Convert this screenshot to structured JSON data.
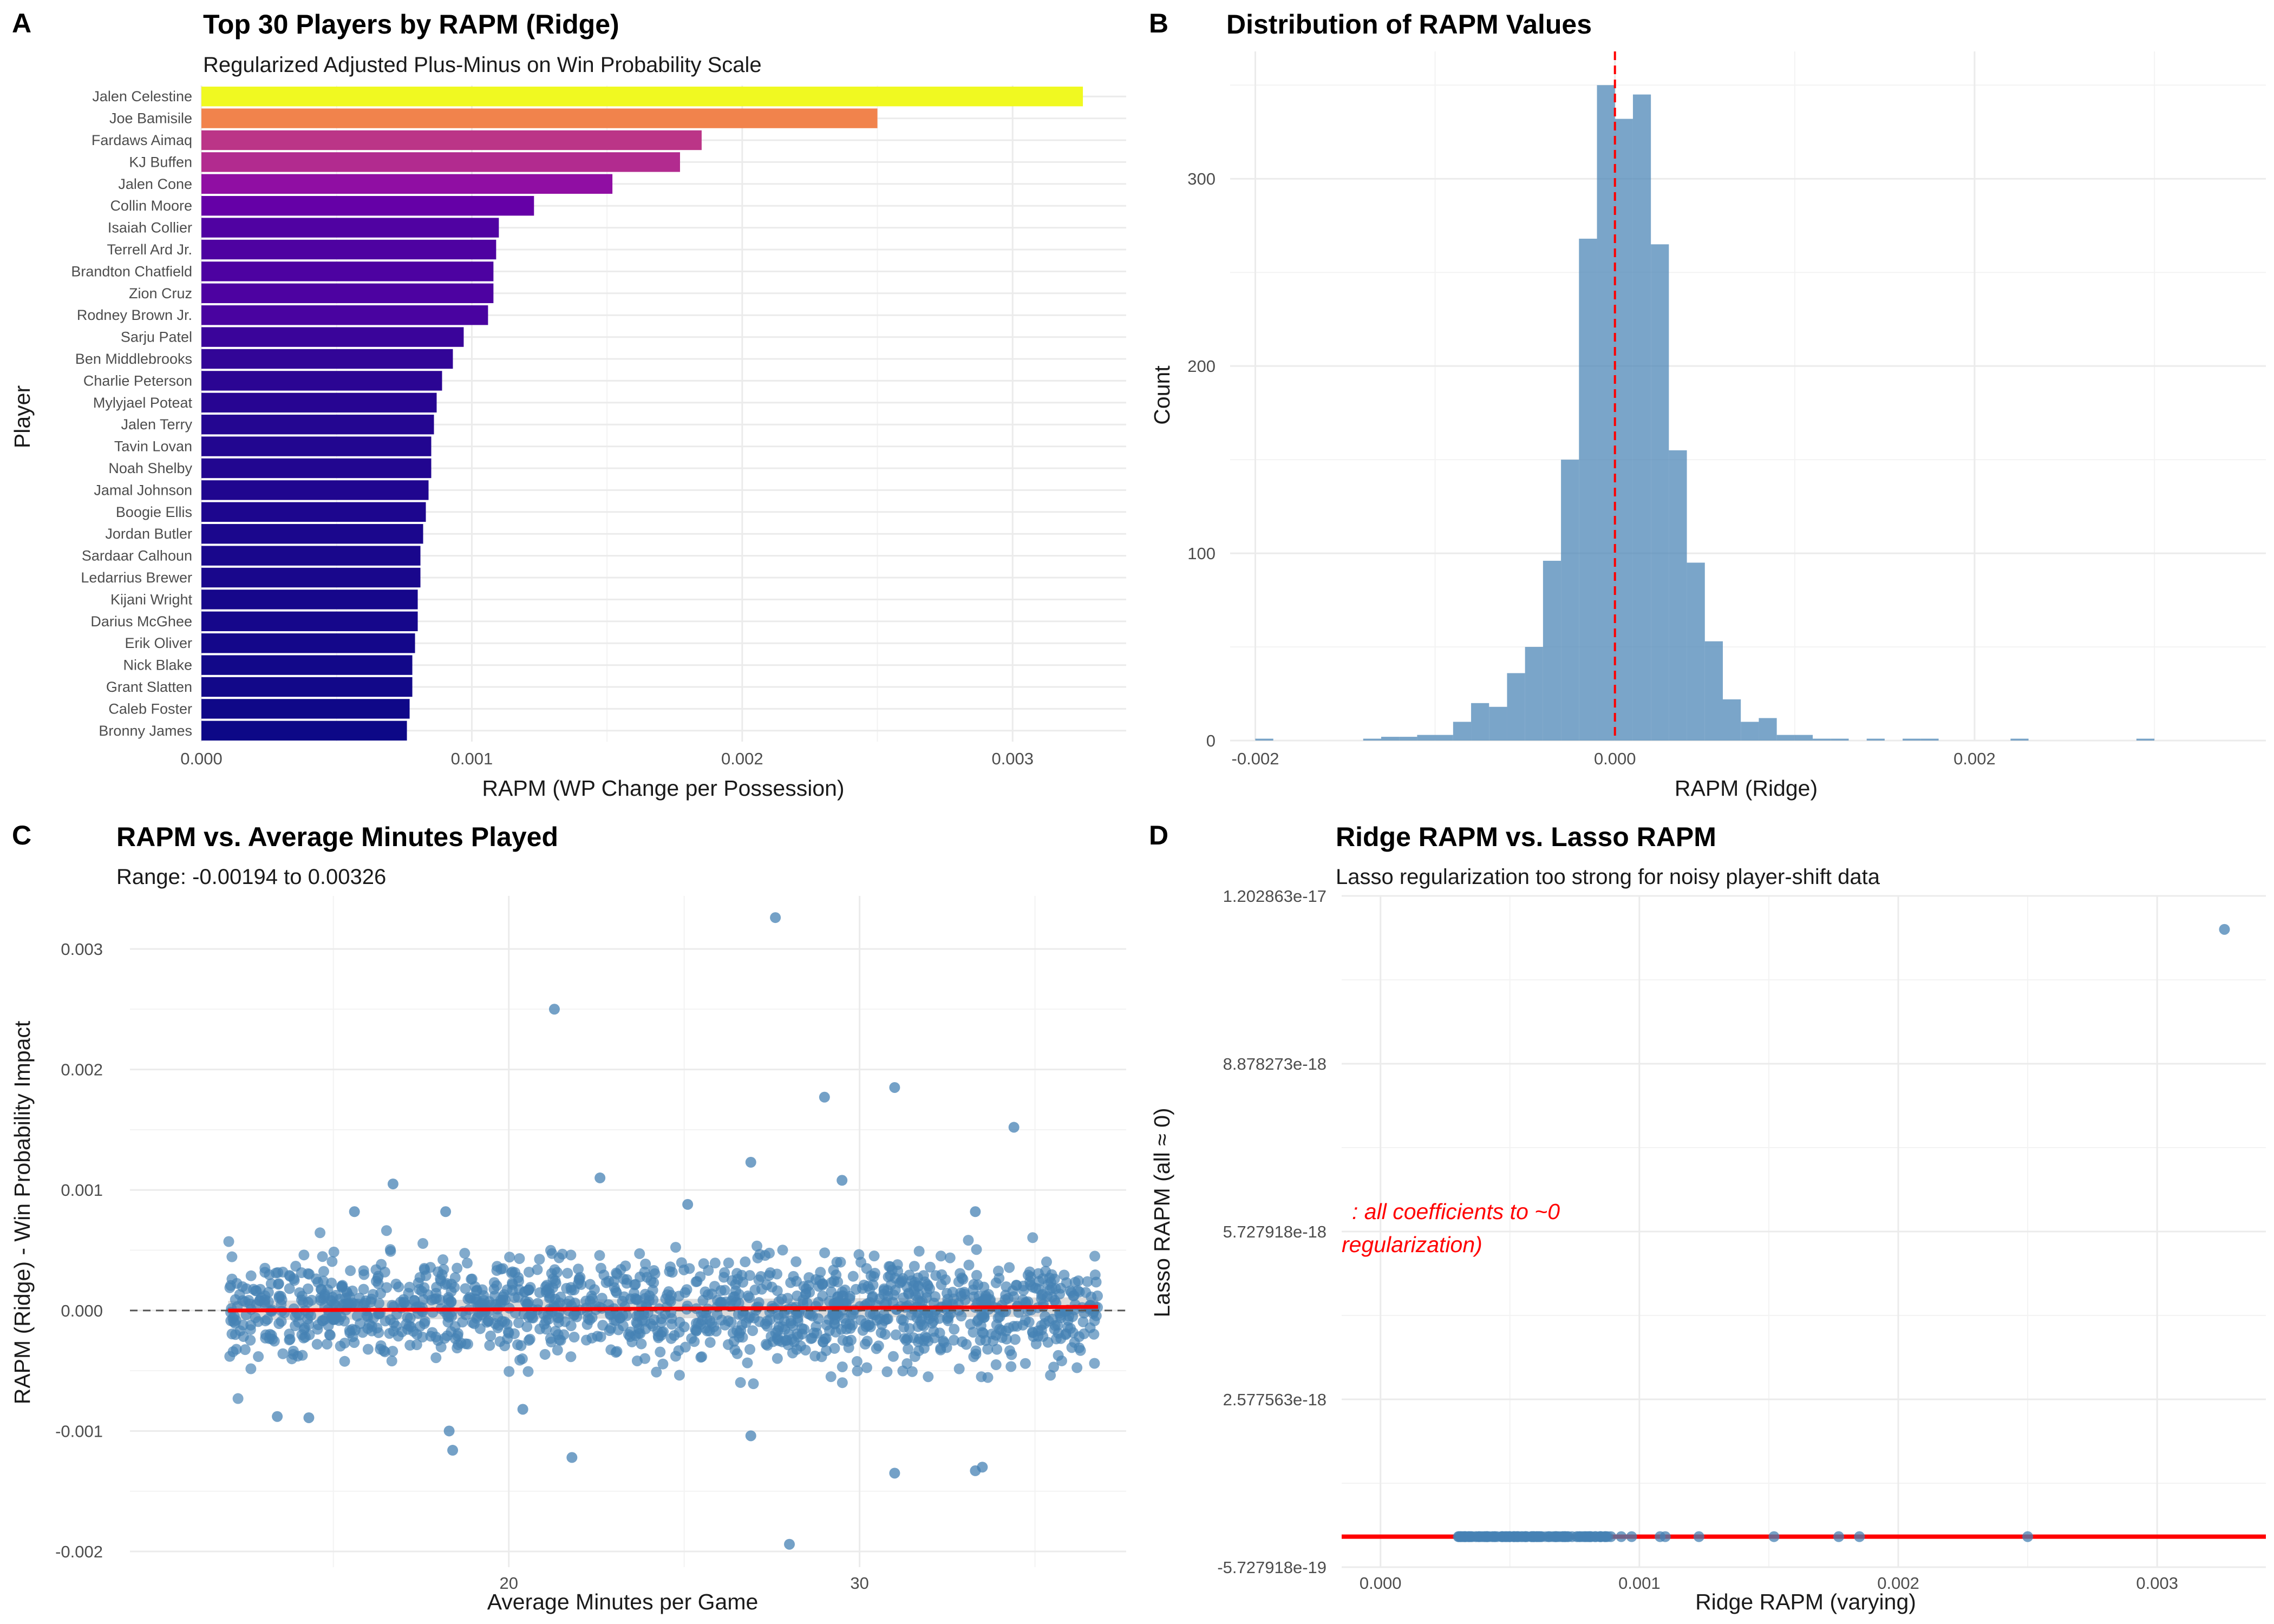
{
  "colors": {
    "steelblue": "#4682b4",
    "red": "#ff0000",
    "dark_red": "#cc0000",
    "plasma": [
      "#0d0887",
      "#2a0593",
      "#41049d",
      "#5601a4",
      "#6a00a8",
      "#7e03a8",
      "#8f0da4",
      "#a11b9b",
      "#b12a90",
      "#bf3984",
      "#cc4778",
      "#d6556d",
      "#e16462",
      "#ea7457",
      "#f2844b",
      "#f89540",
      "#fca636",
      "#feb82c",
      "#fcce25",
      "#f5e626",
      "#f0f921"
    ]
  },
  "chart_data": [
    {
      "panel": "A",
      "type": "bar",
      "orientation": "horizontal",
      "title": "Top 30 Players by RAPM (Ridge)",
      "subtitle": "Regularized Adjusted Plus-Minus on Win Probability Scale",
      "xlabel": "RAPM (WP Change per Possession)",
      "ylabel": "Player",
      "xlim": [
        0,
        0.00342
      ],
      "x_ticks": [
        "0.000",
        "0.001",
        "0.002",
        "0.003"
      ],
      "fill": "plasma gradient by value",
      "categories": [
        "Jalen Celestine",
        "Joe Bamisile",
        "Fardaws Aimaq",
        "KJ Buffen",
        "Jalen Cone",
        "Collin Moore",
        "Isaiah Collier",
        "Terrell Ard Jr.",
        "Brandton Chatfield",
        "Zion Cruz",
        "Rodney Brown Jr.",
        "Sarju Patel",
        "Ben Middlebrooks",
        "Charlie Peterson",
        "Mylyjael Poteat",
        "Jalen Terry",
        "Tavin Lovan",
        "Noah Shelby",
        "Jamal Johnson",
        "Boogie Ellis",
        "Jordan Butler",
        "Sardaar Calhoun",
        "Ledarrius Brewer",
        "Kijani Wright",
        "Darius McGhee",
        "Erik Oliver",
        "Nick Blake",
        "Grant Slatten",
        "Caleb Foster",
        "Bronny James"
      ],
      "values": [
        0.00326,
        0.0025,
        0.00185,
        0.00177,
        0.00152,
        0.00123,
        0.0011,
        0.00109,
        0.00108,
        0.00108,
        0.00106,
        0.00097,
        0.00093,
        0.00089,
        0.00087,
        0.00086,
        0.00085,
        0.00085,
        0.00084,
        0.00083,
        0.00082,
        0.00081,
        0.00081,
        0.0008,
        0.0008,
        0.00079,
        0.00078,
        0.00078,
        0.00077,
        0.00076
      ]
    },
    {
      "panel": "B",
      "type": "histogram",
      "title": "Distribution of RAPM Values",
      "xlabel": "RAPM (Ridge)",
      "ylabel": "Count",
      "xlim": [
        -0.00214,
        0.00362
      ],
      "ylim": [
        0,
        368
      ],
      "x_ticks": [
        "-0.002",
        "0.000",
        "0.002"
      ],
      "y_ticks": [
        "0",
        "100",
        "200",
        "300"
      ],
      "bin_width": 0.0001,
      "bins_start": -0.002,
      "counts": [
        1,
        0,
        0,
        0,
        0,
        0,
        1,
        2,
        2,
        3,
        3,
        10,
        20,
        18,
        36,
        50,
        96,
        150,
        268,
        350,
        332,
        345,
        265,
        155,
        95,
        53,
        22,
        10,
        12,
        3,
        3,
        1,
        1,
        0,
        1,
        0,
        1,
        1,
        0,
        0,
        0,
        0,
        1,
        0,
        0,
        0,
        0,
        0,
        0,
        1
      ],
      "reference_line": {
        "x": 0,
        "style": "dashed",
        "color": "#ff0000"
      },
      "fill": "#4682b4"
    },
    {
      "panel": "C",
      "type": "scatter",
      "title": "RAPM vs. Average Minutes Played",
      "subtitle": "Range: -0.00194 to 0.00326",
      "xlabel": "Average Minutes per Game",
      "ylabel": "RAPM (Ridge) - Win Probability Impact",
      "xlim": [
        9.2,
        37.6
      ],
      "ylim": [
        -0.00213,
        0.00344
      ],
      "x_ticks": [
        "20",
        "30"
      ],
      "y_ticks": [
        "-0.002",
        "-0.001",
        "0.000",
        "0.001",
        "0.002",
        "0.003"
      ],
      "trend_line": {
        "x": [
          12,
          36.8
        ],
        "y": [
          0.0,
          3e-05
        ],
        "color": "#ff0000"
      },
      "zero_line": {
        "y": 0,
        "style": "dashed"
      },
      "dense_cloud": {
        "n": 1400,
        "x_range": [
          12,
          36.8
        ],
        "sd": 0.00021
      },
      "outliers": [
        {
          "x": 27.6,
          "y": 0.00326
        },
        {
          "x": 21.3,
          "y": 0.0025
        },
        {
          "x": 31.0,
          "y": 0.00185
        },
        {
          "x": 29.0,
          "y": 0.00177
        },
        {
          "x": 34.4,
          "y": 0.00152
        },
        {
          "x": 26.9,
          "y": 0.00123
        },
        {
          "x": 16.7,
          "y": 0.00105
        },
        {
          "x": 22.6,
          "y": 0.0011
        },
        {
          "x": 29.5,
          "y": 0.00108
        },
        {
          "x": 25.1,
          "y": 0.00088
        },
        {
          "x": 15.6,
          "y": 0.00082
        },
        {
          "x": 18.2,
          "y": 0.00082
        },
        {
          "x": 33.3,
          "y": 0.00082
        },
        {
          "x": 18.3,
          "y": -0.001
        },
        {
          "x": 18.4,
          "y": -0.00116
        },
        {
          "x": 21.8,
          "y": -0.00122
        },
        {
          "x": 26.9,
          "y": -0.00104
        },
        {
          "x": 31.0,
          "y": -0.00135
        },
        {
          "x": 33.3,
          "y": -0.00133
        },
        {
          "x": 33.5,
          "y": -0.0013
        },
        {
          "x": 28.0,
          "y": -0.00194
        },
        {
          "x": 13.4,
          "y": -0.00088
        },
        {
          "x": 14.3,
          "y": -0.00089
        },
        {
          "x": 20.4,
          "y": -0.00082
        }
      ],
      "point_color": "#4682b4"
    },
    {
      "panel": "D",
      "type": "scatter",
      "title": "Ridge RAPM vs. Lasso RAPM",
      "subtitle": "Lasso regularization too strong for noisy player-shift data",
      "xlabel": "Ridge RAPM (varying)",
      "ylabel": "Lasso RAPM (all ≈ 0)",
      "xlim": [
        -0.00015,
        0.00342
      ],
      "ylim": [
        -5.727918e-19,
        1.202863e-17
      ],
      "x_ticks": [
        "0.000",
        "0.001",
        "0.002",
        "0.003"
      ],
      "y_ticks": [
        "-5.727918e-19",
        "2.577563e-18",
        "5.727918e-18",
        "8.878273e-18",
        "1.202863e-17"
      ],
      "y_tick_values": [
        -5.727918e-19,
        2.577563e-18,
        5.727918e-18,
        8.878273e-18,
        1.202863e-17
      ],
      "baseline": {
        "y": 0,
        "color": "#ff0000"
      },
      "points": [
        {
          "x": 0.00326,
          "y": 1.14e-17
        },
        {
          "x": 0.0025,
          "y": 0
        },
        {
          "x": 0.00185,
          "y": 0
        },
        {
          "x": 0.00177,
          "y": 0
        },
        {
          "x": 0.00152,
          "y": 0
        },
        {
          "x": 0.00123,
          "y": 0
        },
        {
          "x": 0.0011,
          "y": 0
        },
        {
          "x": 0.00108,
          "y": 0
        },
        {
          "x": 0.00097,
          "y": 0
        },
        {
          "x": 0.00093,
          "y": 0
        },
        {
          "x": 0.00089,
          "y": 0
        },
        {
          "x": 0.00087,
          "y": 0
        },
        {
          "x": 0.00085,
          "y": 0
        },
        {
          "x": 0.00083,
          "y": 0
        },
        {
          "x": 0.00081,
          "y": 0
        },
        {
          "x": 0.00079,
          "y": 0
        },
        {
          "x": 0.00077,
          "y": 0
        },
        {
          "x": 0.00074,
          "y": 0
        },
        {
          "x": 0.00071,
          "y": 0
        },
        {
          "x": 0.00068,
          "y": 0
        },
        {
          "x": 0.00065,
          "y": 0
        },
        {
          "x": 0.00062,
          "y": 0
        },
        {
          "x": 0.00059,
          "y": 0
        },
        {
          "x": 0.00056,
          "y": 0
        },
        {
          "x": 0.00053,
          "y": 0
        },
        {
          "x": 0.0005,
          "y": 0
        },
        {
          "x": 0.00047,
          "y": 0
        },
        {
          "x": 0.00044,
          "y": 0
        },
        {
          "x": 0.00041,
          "y": 0
        },
        {
          "x": 0.00038,
          "y": 0
        },
        {
          "x": 0.00035,
          "y": 0
        },
        {
          "x": 0.00032,
          "y": 0
        }
      ],
      "annotation": [
        ": all coefficients to ~0",
        "regularization)"
      ],
      "point_color": "#4682b4"
    }
  ]
}
